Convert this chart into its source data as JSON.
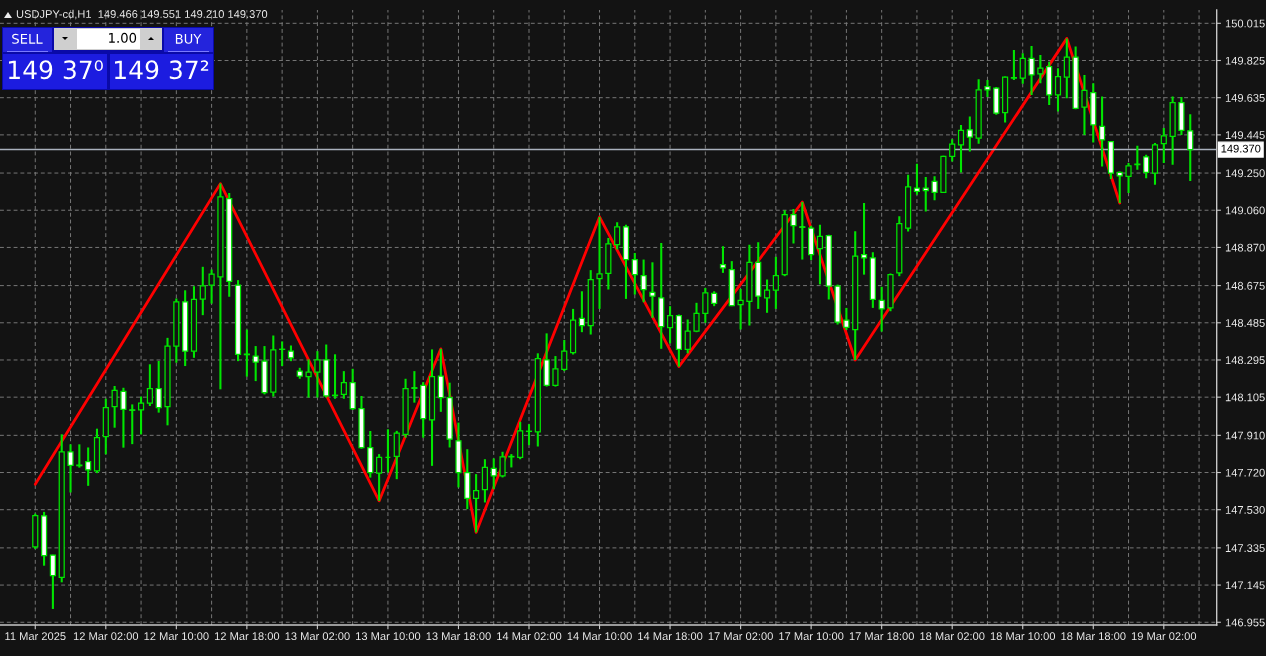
{
  "chart_data": {
    "type": "candlestick",
    "title": "USDJPY-cd,H1  149.466 149.551 149.210 149.370",
    "categories": [
      "11 Mar 2025",
      null,
      null,
      null,
      null,
      null,
      null,
      null,
      "12 Mar 02:00",
      null,
      null,
      null,
      null,
      null,
      null,
      null,
      "12 Mar 10:00",
      null,
      null,
      null,
      null,
      null,
      null,
      null,
      "12 Mar 18:00",
      null,
      null,
      null,
      null,
      null,
      null,
      null,
      "13 Mar 02:00",
      null,
      null,
      null,
      null,
      null,
      null,
      null,
      "13 Mar 10:00",
      null,
      null,
      null,
      null,
      null,
      null,
      null,
      "13 Mar 18:00",
      null,
      null,
      null,
      null,
      null,
      null,
      null,
      "14 Mar 02:00",
      null,
      null,
      null,
      null,
      null,
      null,
      null,
      "14 Mar 10:00",
      null,
      null,
      null,
      null,
      null,
      null,
      null,
      "14 Mar 18:00",
      null,
      null,
      null,
      null,
      null,
      null,
      null,
      "17 Mar 02:00",
      null,
      null,
      null,
      null,
      null,
      null,
      null,
      "17 Mar 10:00",
      null,
      null,
      null,
      null,
      null,
      null,
      null,
      "17 Mar 18:00",
      null,
      null,
      null,
      null,
      null,
      null,
      null,
      "18 Mar 02:00",
      null,
      null,
      null,
      null,
      null,
      null,
      null,
      "18 Mar 10:00",
      null,
      null,
      null,
      null,
      null,
      null,
      null,
      "18 Mar 18:00",
      null,
      null,
      null,
      null,
      null,
      null,
      null,
      "19 Mar 02:00",
      null,
      null,
      null
    ],
    "ohlc": [
      [
        147.34,
        147.51,
        147.33,
        147.5
      ],
      [
        147.499,
        147.519,
        147.244,
        147.295
      ],
      [
        147.298,
        147.3,
        147.023,
        147.193
      ],
      [
        147.184,
        147.915,
        147.159,
        147.825
      ],
      [
        147.825,
        147.864,
        147.618,
        147.757
      ],
      [
        147.758,
        147.864,
        147.745,
        147.755
      ],
      [
        147.776,
        147.848,
        147.652,
        147.734
      ],
      [
        147.728,
        147.944,
        147.717,
        147.898
      ],
      [
        147.904,
        148.097,
        147.813,
        148.051
      ],
      [
        148.057,
        148.162,
        147.949,
        148.14
      ],
      [
        148.135,
        148.153,
        147.847,
        148.043
      ],
      [
        148.04,
        148.068,
        147.865,
        148.038
      ],
      [
        148.04,
        148.108,
        147.915,
        148.074
      ],
      [
        148.074,
        148.273,
        148.06,
        148.148
      ],
      [
        148.148,
        148.29,
        148.026,
        148.051
      ],
      [
        148.057,
        148.408,
        147.961,
        148.366
      ],
      [
        148.366,
        148.609,
        148.281,
        148.592
      ],
      [
        148.592,
        148.651,
        148.264,
        148.34
      ],
      [
        148.34,
        148.672,
        148.306,
        148.604
      ],
      [
        148.606,
        148.771,
        148.524,
        148.674
      ],
      [
        148.677,
        148.757,
        148.583,
        148.733
      ],
      [
        148.72,
        149.196,
        148.145,
        149.128
      ],
      [
        149.119,
        149.148,
        148.618,
        148.697
      ],
      [
        148.677,
        148.703,
        148.289,
        148.323
      ],
      [
        148.325,
        148.45,
        148.21,
        148.322
      ],
      [
        148.315,
        148.366,
        148.187,
        148.284
      ],
      [
        148.289,
        148.366,
        148.119,
        148.128
      ],
      [
        148.131,
        148.42,
        148.108,
        148.346
      ],
      [
        148.349,
        148.39,
        148.264,
        148.35
      ],
      [
        148.34,
        148.369,
        148.289,
        148.306
      ],
      [
        148.238,
        148.255,
        148.199,
        148.213
      ],
      [
        148.21,
        148.298,
        148.103,
        148.233
      ],
      [
        148.233,
        148.34,
        148.103,
        148.295
      ],
      [
        148.295,
        148.374,
        148.103,
        148.111
      ],
      [
        148.115,
        148.324,
        148.097,
        148.113
      ],
      [
        148.119,
        148.238,
        148.097,
        148.179
      ],
      [
        148.179,
        148.25,
        148.04,
        148.046
      ],
      [
        148.046,
        148.111,
        147.842,
        147.847
      ],
      [
        147.847,
        147.932,
        147.694,
        147.72
      ],
      [
        147.717,
        147.814,
        147.575,
        147.797
      ],
      [
        147.797,
        147.941,
        147.72,
        147.797
      ],
      [
        147.802,
        147.933,
        147.686,
        147.921
      ],
      [
        147.915,
        148.199,
        147.898,
        148.148
      ],
      [
        148.153,
        148.238,
        148.077,
        148.15
      ],
      [
        148.165,
        148.182,
        147.898,
        147.995
      ],
      [
        147.989,
        148.349,
        147.754,
        148.21
      ],
      [
        148.213,
        148.352,
        148.03,
        148.103
      ],
      [
        148.103,
        148.179,
        147.848,
        147.89
      ],
      [
        147.882,
        147.975,
        147.644,
        147.72
      ],
      [
        147.72,
        147.839,
        147.533,
        147.588
      ],
      [
        147.588,
        147.712,
        147.414,
        147.627
      ],
      [
        147.632,
        147.788,
        147.567,
        147.746
      ],
      [
        147.741,
        147.792,
        147.635,
        147.703
      ],
      [
        147.703,
        147.826,
        147.695,
        147.8
      ],
      [
        147.8,
        147.814,
        147.746,
        147.802
      ],
      [
        147.797,
        147.979,
        147.788,
        147.933
      ],
      [
        147.93,
        147.967,
        147.86,
        147.931
      ],
      [
        147.928,
        148.329,
        147.853,
        148.302
      ],
      [
        148.295,
        148.431,
        148.159,
        148.165
      ],
      [
        148.165,
        148.315,
        148.159,
        148.25
      ],
      [
        148.247,
        148.397,
        148.238,
        148.34
      ],
      [
        148.332,
        148.556,
        148.323,
        148.499
      ],
      [
        148.507,
        148.646,
        148.437,
        148.471
      ],
      [
        148.471,
        148.754,
        148.425,
        148.706
      ],
      [
        148.711,
        149.026,
        148.556,
        148.735
      ],
      [
        148.737,
        148.918,
        148.655,
        148.888
      ],
      [
        148.884,
        148.998,
        148.859,
        148.975
      ],
      [
        148.975,
        148.986,
        148.607,
        148.808
      ],
      [
        148.808,
        148.842,
        148.629,
        148.731
      ],
      [
        148.726,
        148.808,
        148.59,
        148.655
      ],
      [
        148.641,
        148.794,
        148.51,
        148.621
      ],
      [
        148.612,
        148.893,
        148.352,
        148.465
      ],
      [
        148.46,
        148.57,
        148.38,
        148.522
      ],
      [
        148.522,
        148.527,
        148.261,
        148.349
      ],
      [
        148.349,
        148.502,
        148.329,
        148.442
      ],
      [
        148.442,
        148.587,
        148.437,
        148.533
      ],
      [
        148.533,
        148.663,
        148.485,
        148.638
      ],
      [
        148.635,
        148.646,
        148.57,
        148.584
      ],
      [
        148.782,
        148.876,
        148.74,
        148.765
      ],
      [
        148.757,
        148.8,
        148.57,
        148.573
      ],
      [
        148.578,
        148.658,
        148.451,
        148.6
      ],
      [
        148.595,
        148.884,
        148.471,
        148.794
      ],
      [
        148.794,
        148.896,
        148.556,
        148.621
      ],
      [
        148.612,
        148.706,
        148.536,
        148.652
      ],
      [
        148.652,
        148.822,
        148.556,
        148.726
      ],
      [
        148.731,
        149.06,
        148.723,
        149.037
      ],
      [
        149.037,
        149.066,
        148.89,
        148.981
      ],
      [
        148.975,
        149.102,
        148.808,
        148.972
      ],
      [
        148.969,
        148.981,
        148.805,
        148.833
      ],
      [
        148.864,
        148.986,
        148.681,
        148.927
      ],
      [
        148.93,
        148.935,
        148.604,
        148.672
      ],
      [
        148.672,
        148.68,
        148.476,
        148.488
      ],
      [
        148.498,
        148.561,
        148.448,
        148.462
      ],
      [
        148.45,
        148.953,
        148.295,
        148.825
      ],
      [
        148.833,
        149.097,
        148.731,
        148.816
      ],
      [
        148.816,
        148.845,
        148.561,
        148.604
      ],
      [
        148.599,
        148.669,
        148.44,
        148.556
      ],
      [
        148.561,
        148.737,
        148.544,
        148.731
      ],
      [
        148.74,
        149.029,
        148.723,
        148.992
      ],
      [
        148.969,
        149.241,
        148.952,
        149.179
      ],
      [
        149.173,
        149.298,
        149.139,
        149.156
      ],
      [
        149.173,
        149.23,
        149.054,
        149.16
      ],
      [
        149.207,
        149.233,
        149.111,
        149.151
      ],
      [
        149.151,
        149.338,
        149.148,
        149.335
      ],
      [
        149.335,
        149.423,
        149.309,
        149.398
      ],
      [
        149.394,
        149.496,
        149.253,
        149.468
      ],
      [
        149.471,
        149.539,
        149.36,
        149.434
      ],
      [
        149.428,
        149.729,
        149.4,
        149.675
      ],
      [
        149.692,
        149.726,
        149.638,
        149.675
      ],
      [
        149.684,
        149.689,
        149.548,
        149.556
      ],
      [
        149.559,
        149.743,
        149.508,
        149.74
      ],
      [
        149.735,
        149.879,
        149.726,
        149.737
      ],
      [
        149.735,
        149.862,
        149.706,
        149.836
      ],
      [
        149.836,
        149.899,
        149.649,
        149.751
      ],
      [
        149.757,
        149.853,
        149.709,
        149.786
      ],
      [
        149.794,
        149.819,
        149.598,
        149.649
      ],
      [
        149.649,
        149.786,
        149.564,
        149.743
      ],
      [
        149.74,
        149.938,
        149.632,
        149.842
      ],
      [
        149.842,
        149.896,
        149.576,
        149.581
      ],
      [
        149.587,
        149.751,
        149.445,
        149.672
      ],
      [
        149.661,
        149.709,
        149.406,
        149.496
      ],
      [
        149.488,
        149.641,
        149.284,
        149.42
      ],
      [
        149.411,
        149.411,
        149.219,
        149.25
      ],
      [
        149.253,
        149.258,
        149.097,
        149.236
      ],
      [
        149.233,
        149.301,
        149.148,
        149.287
      ],
      [
        149.293,
        149.389,
        149.267,
        149.295
      ],
      [
        149.332,
        149.343,
        149.224,
        149.253
      ],
      [
        149.25,
        149.403,
        149.19,
        149.394
      ],
      [
        149.4,
        149.48,
        149.301,
        149.44
      ],
      [
        149.437,
        149.641,
        149.292,
        149.61
      ],
      [
        149.61,
        149.638,
        149.445,
        149.468
      ],
      [
        149.466,
        149.551,
        149.21,
        149.37
      ]
    ],
    "series": [
      {
        "type": "line",
        "color": "#ff0000",
        "values": [
          147.66,
          null,
          null,
          null,
          null,
          null,
          null,
          null,
          null,
          null,
          null,
          null,
          null,
          null,
          null,
          null,
          null,
          null,
          null,
          null,
          null,
          149.196,
          null,
          null,
          null,
          null,
          null,
          null,
          null,
          null,
          null,
          null,
          null,
          null,
          null,
          null,
          null,
          null,
          null,
          147.575,
          null,
          null,
          null,
          null,
          null,
          null,
          148.352,
          null,
          null,
          null,
          147.414,
          null,
          null,
          null,
          null,
          null,
          null,
          null,
          null,
          null,
          null,
          null,
          null,
          null,
          149.026,
          null,
          null,
          null,
          null,
          null,
          null,
          null,
          null,
          148.261,
          null,
          null,
          null,
          null,
          null,
          null,
          null,
          null,
          null,
          null,
          null,
          null,
          null,
          149.102,
          null,
          null,
          null,
          null,
          null,
          148.295,
          null,
          null,
          null,
          null,
          null,
          null,
          null,
          null,
          null,
          null,
          null,
          null,
          null,
          null,
          null,
          null,
          null,
          null,
          null,
          null,
          null,
          null,
          null,
          149.938,
          null,
          null,
          null,
          null,
          null,
          149.097,
          null,
          null,
          null,
          null,
          null,
          null,
          null,
          null
        ]
      }
    ],
    "ylim": [
      146.941,
      150.083
    ],
    "yticks": [
      146.955,
      147.145,
      147.335,
      {
        "value": 147.53,
        "label": "147.530"
      },
      {
        "value": 147.72,
        "label": "147.720"
      },
      {
        "value": 147.91,
        "label": "147.910"
      },
      148.105,
      148.295,
      148.485,
      148.675,
      {
        "value": 148.87,
        "label": "148.870"
      },
      {
        "value": 149.06,
        "label": "149.060"
      },
      {
        "value": 149.25,
        "label": "149.250"
      },
      149.445,
      149.635,
      149.825,
      150.015
    ],
    "grid": true,
    "ref_lines": [
      {
        "axis": "y",
        "value": 149.37,
        "label": "149.370",
        "color": "#a9b1bd"
      }
    ],
    "annotations": [
      "SELL",
      "1.00",
      "BUY",
      "149 37⁰",
      "149 37²"
    ]
  }
}
